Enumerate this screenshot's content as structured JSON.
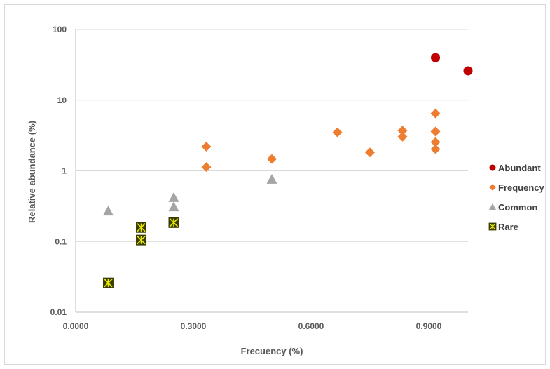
{
  "chart_data": {
    "type": "scatter",
    "title": "",
    "xlabel": "Frecuency (%)",
    "ylabel": "Relative abundance (%)",
    "xlim": [
      0,
      1
    ],
    "ylim": [
      0.01,
      100
    ],
    "y_scale": "log",
    "x_ticks": [
      0,
      0.3,
      0.6,
      0.9
    ],
    "x_tick_labels": [
      "0.0000",
      "0.3000",
      "0.6000",
      "0.9000"
    ],
    "y_ticks": [
      0.01,
      0.1,
      1,
      10,
      100
    ],
    "y_tick_labels": [
      "0.01",
      "0.1",
      "1",
      "10",
      "100"
    ],
    "grid": "horizontal",
    "legend_position": "right",
    "series": [
      {
        "name": "Abundant",
        "marker": "circle",
        "color": "#c00000",
        "points": [
          [
            0.917,
            40
          ],
          [
            1.0,
            26
          ]
        ]
      },
      {
        "name": "Frequency",
        "marker": "diamond",
        "color": "#ed7d31",
        "points": [
          [
            0.333,
            2.2
          ],
          [
            0.333,
            1.13
          ],
          [
            0.5,
            1.47
          ],
          [
            0.667,
            3.5
          ],
          [
            0.75,
            1.82
          ],
          [
            0.833,
            3.7
          ],
          [
            0.833,
            3.05
          ],
          [
            0.917,
            6.5
          ],
          [
            0.917,
            3.6
          ],
          [
            0.917,
            2.55
          ],
          [
            0.917,
            2.03
          ]
        ]
      },
      {
        "name": "Common",
        "marker": "triangle",
        "color": "#a5a5a5",
        "points": [
          [
            0.083,
            0.27
          ],
          [
            0.25,
            0.42
          ],
          [
            0.25,
            0.31
          ],
          [
            0.5,
            0.76
          ]
        ]
      },
      {
        "name": "Rare",
        "marker": "square-star",
        "color": "#3a3d00",
        "accent": "#e8e800",
        "points": [
          [
            0.083,
            0.026
          ],
          [
            0.167,
            0.158
          ],
          [
            0.167,
            0.105
          ],
          [
            0.25,
            0.185
          ]
        ]
      }
    ]
  },
  "colors": {
    "gridline": "#d9d9d9",
    "axis_line": "#bfbfbf",
    "text": "#595959"
  }
}
